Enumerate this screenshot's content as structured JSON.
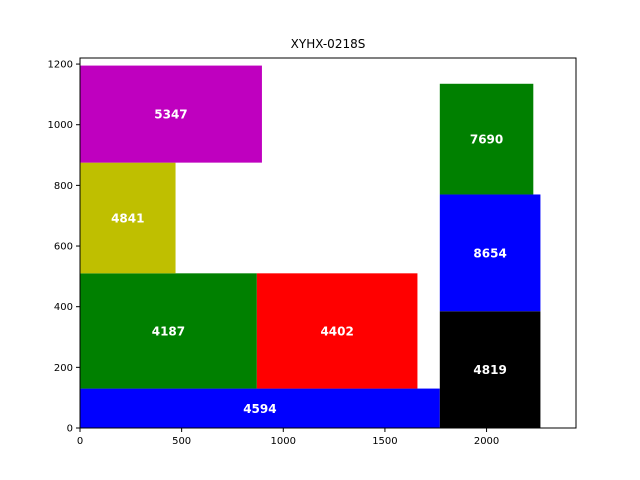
{
  "chart_data": {
    "type": "rect_packing",
    "title": "XYHX-0218S",
    "xlabel": "",
    "ylabel": "",
    "xlim": [
      0,
      2440
    ],
    "ylim": [
      0,
      1220
    ],
    "xticks": [
      0,
      500,
      1000,
      1500,
      2000
    ],
    "yticks": [
      0,
      200,
      400,
      600,
      800,
      1000,
      1200
    ],
    "grid": false,
    "rects": [
      {
        "label": "4594",
        "x": 0,
        "y": 0,
        "w": 1770,
        "h": 130,
        "color": "#0000ff"
      },
      {
        "label": "4187",
        "x": 0,
        "y": 130,
        "w": 870,
        "h": 380,
        "color": "#008000"
      },
      {
        "label": "4402",
        "x": 870,
        "y": 130,
        "w": 790,
        "h": 380,
        "color": "#ff0000"
      },
      {
        "label": "4841",
        "x": 0,
        "y": 510,
        "w": 470,
        "h": 365,
        "color": "#bfbf00"
      },
      {
        "label": "5347",
        "x": 0,
        "y": 875,
        "w": 895,
        "h": 320,
        "color": "#bf00bf"
      },
      {
        "label": "4819",
        "x": 1770,
        "y": 0,
        "w": 495,
        "h": 385,
        "color": "#000000"
      },
      {
        "label": "8654",
        "x": 1770,
        "y": 385,
        "w": 495,
        "h": 385,
        "color": "#0000ff"
      },
      {
        "label": "7690",
        "x": 1770,
        "y": 770,
        "w": 460,
        "h": 365,
        "color": "#008000"
      }
    ]
  }
}
